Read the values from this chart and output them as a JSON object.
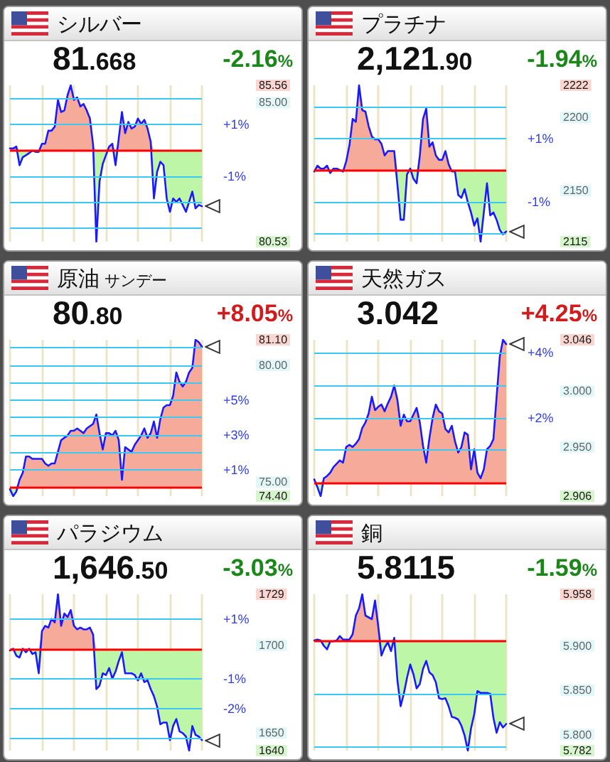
{
  "chart_data": [
    {
      "type": "line",
      "title": "シルバー",
      "subtitle": "81.668",
      "annotations": [
        "-2.16%"
      ],
      "grid": "x",
      "tick_labels": "y",
      "categories": [
        null,
        null,
        null,
        null,
        null,
        null,
        null,
        null,
        null,
        null,
        null,
        null,
        null,
        null,
        null,
        null,
        null,
        null,
        null,
        null,
        null,
        null,
        null,
        null,
        null,
        null,
        null,
        null,
        null,
        null,
        null,
        null,
        null,
        null,
        null,
        null,
        null,
        null,
        null,
        null,
        null,
        null,
        null,
        null,
        null,
        null,
        null,
        null,
        null,
        null,
        null,
        null,
        null,
        null,
        null,
        null,
        null,
        null,
        null,
        null,
        null
      ],
      "series": [
        {
          "color": "#1a1aff",
          "values": [
            83.53,
            83.53,
            83.59,
            82.99,
            83.25,
            83.31,
            83.38,
            83.46,
            83.42,
            83.42,
            83.68,
            83.68,
            84.1,
            84.1,
            84.23,
            85.09,
            84.7,
            84.75,
            85.24,
            85.56,
            85.09,
            85.17,
            84.88,
            84.96,
            84.75,
            84.49,
            83.63,
            80.53,
            82.46,
            83.03,
            83.31,
            83.59,
            83.68,
            82.99,
            83.85,
            84.7,
            84.02,
            84.38,
            84.17,
            84.23,
            84.49,
            84.32,
            84.45,
            84.17,
            83.74,
            81.92,
            82.78,
            83.1,
            82.99,
            81.92,
            81.49,
            81.92,
            81.81,
            81.92,
            81.71,
            81.49,
            81.81,
            82.14,
            81.6,
            81.71,
            81.67
          ],
          "lower": [
            83.47,
            83.47,
            83.47,
            82.99,
            83.25,
            83.31,
            83.38,
            83.46,
            83.42,
            83.42,
            83.47,
            83.47,
            83.47,
            83.47,
            83.47,
            83.47,
            83.47,
            83.47,
            83.47,
            83.47,
            83.47,
            83.47,
            83.47,
            83.47,
            83.47,
            83.47,
            83.47,
            80.53,
            82.46,
            83.03,
            83.31,
            83.47,
            83.47,
            82.99,
            83.47,
            83.47,
            83.47,
            83.47,
            83.47,
            83.47,
            83.47,
            83.47,
            83.47,
            83.47,
            83.47,
            81.92,
            82.78,
            83.1,
            82.99,
            81.92,
            81.49,
            81.92,
            81.81,
            81.92,
            81.71,
            81.49,
            81.81,
            82.14,
            81.6,
            81.71,
            81.67
          ],
          "upper": [
            83.53,
            83.53,
            83.59,
            83.47,
            83.47,
            83.47,
            83.47,
            83.47,
            83.47,
            83.47,
            83.68,
            83.68,
            84.1,
            84.1,
            84.23,
            85.09,
            84.7,
            84.75,
            85.24,
            85.56,
            85.09,
            85.17,
            84.88,
            84.96,
            84.75,
            84.49,
            83.63,
            83.47,
            83.47,
            83.47,
            83.47,
            83.59,
            83.68,
            83.47,
            83.85,
            84.7,
            84.02,
            84.38,
            84.17,
            84.23,
            84.49,
            84.32,
            84.45,
            84.17,
            83.74,
            83.47,
            83.47,
            83.47,
            83.47,
            83.47,
            83.47,
            83.47,
            83.47,
            83.47,
            83.47,
            83.47,
            83.47,
            83.47,
            83.47,
            83.47,
            83.47
          ]
        }
      ],
      "ylim": [
        80.53,
        85.56
      ],
      "yticks": [
        85.56,
        {
          "value": 85,
          "label": "85.00"
        },
        80.53
      ],
      "y2lim": [
        -3.52,
        2.5
      ],
      "y2ticks": [
        {
          "value": 1,
          "label": "+1%"
        },
        {
          "value": -1,
          "label": "-1%"
        }
      ],
      "ref_lines": [
        {
          "axis": "y2",
          "value": 0,
          "color": "#ff0000"
        },
        {
          "axis": "y2",
          "value": 2,
          "color": "#3cc8f5"
        },
        {
          "axis": "y2",
          "value": 1,
          "color": "#3cc8f5"
        },
        {
          "axis": "y2",
          "value": -1,
          "color": "#3cc8f5"
        },
        {
          "axis": "y2",
          "value": -2,
          "color": "#3cc8f5"
        },
        {
          "axis": "y2",
          "value": -3,
          "color": "#3cc8f5"
        }
      ]
    },
    {
      "type": "line",
      "title": "プラチナ",
      "subtitle": "2,121.90",
      "annotations": [
        "-1.94%"
      ],
      "grid": "x",
      "tick_labels": "y",
      "categories": [
        null,
        null,
        null,
        null,
        null,
        null,
        null,
        null,
        null,
        null,
        null,
        null,
        null,
        null,
        null,
        null,
        null,
        null,
        null,
        null,
        null,
        null,
        null,
        null,
        null,
        null,
        null,
        null,
        null,
        null,
        null,
        null,
        null,
        null,
        null,
        null,
        null,
        null,
        null,
        null,
        null,
        null,
        null,
        null,
        null,
        null,
        null,
        null,
        null,
        null,
        null,
        null,
        null,
        null,
        null,
        null,
        null,
        null,
        null,
        null,
        null
      ],
      "series": [
        {
          "color": "#1a1aff",
          "values": [
            2163,
            2167,
            2165,
            2165,
            2167,
            2162,
            2165,
            2165,
            2164,
            2163,
            2170,
            2181,
            2199,
            2197,
            2222,
            2205,
            2204,
            2194,
            2187,
            2185,
            2185,
            2182,
            2174,
            2177,
            2177,
            2177,
            2154,
            2130,
            2130,
            2161,
            2165,
            2158,
            2155,
            2174,
            2199,
            2206,
            2180,
            2183,
            2174,
            2171,
            2171,
            2177,
            2168,
            2163,
            2163,
            2147,
            2145,
            2151,
            2142,
            2135,
            2126,
            2131,
            2115,
            2135,
            2155,
            2133,
            2135,
            2130,
            2123,
            2120,
            2122
          ],
          "lower": [
            2163,
            2164,
            2164,
            2164,
            2164,
            2162,
            2164,
            2164,
            2164,
            2163,
            2164,
            2164,
            2164,
            2164,
            2164,
            2164,
            2164,
            2164,
            2164,
            2164,
            2164,
            2164,
            2164,
            2164,
            2164,
            2164,
            2154,
            2130,
            2130,
            2161,
            2164,
            2158,
            2155,
            2164,
            2164,
            2164,
            2164,
            2164,
            2164,
            2164,
            2164,
            2164,
            2164,
            2163,
            2163,
            2147,
            2145,
            2151,
            2142,
            2135,
            2126,
            2131,
            2115,
            2135,
            2155,
            2133,
            2135,
            2130,
            2123,
            2120,
            2122
          ],
          "upper": [
            2164,
            2167,
            2165,
            2165,
            2167,
            2164,
            2165,
            2165,
            2164,
            2164,
            2170,
            2181,
            2199,
            2197,
            2222,
            2205,
            2204,
            2194,
            2187,
            2185,
            2185,
            2182,
            2174,
            2177,
            2177,
            2177,
            2164,
            2164,
            2164,
            2164,
            2165,
            2164,
            2164,
            2174,
            2199,
            2206,
            2180,
            2183,
            2174,
            2171,
            2171,
            2177,
            2168,
            2164,
            2164,
            2164,
            2164,
            2164,
            2164,
            2164,
            2164,
            2164,
            2164,
            2164,
            2164,
            2164,
            2164,
            2164,
            2164,
            2164,
            2164
          ]
        }
      ],
      "ylim": [
        2115,
        2222
      ],
      "yticks": [
        2222,
        2200,
        2150,
        2115
      ],
      "y2lim": [
        -2.26,
        2.69
      ],
      "y2ticks": [
        {
          "value": 1,
          "label": "+1%"
        },
        {
          "value": -1,
          "label": "-1%"
        }
      ],
      "ref_lines": [
        {
          "axis": "y2",
          "value": 0,
          "color": "#ff0000"
        },
        {
          "axis": "y2",
          "value": 2,
          "color": "#3cc8f5"
        },
        {
          "axis": "y2",
          "value": 1,
          "color": "#3cc8f5"
        },
        {
          "axis": "y2",
          "value": -1,
          "color": "#3cc8f5"
        },
        {
          "axis": "y2",
          "value": -2,
          "color": "#3cc8f5"
        }
      ]
    },
    {
      "type": "line",
      "title": "原油 サンデー",
      "subtitle": "80.80",
      "annotations": [
        "+8.05%"
      ],
      "grid": "x",
      "tick_labels": "y",
      "categories": [
        null,
        null,
        null,
        null,
        null,
        null,
        null,
        null,
        null,
        null,
        null,
        null,
        null,
        null,
        null,
        null,
        null,
        null,
        null,
        null,
        null,
        null,
        null,
        null,
        null,
        null,
        null,
        null,
        null,
        null,
        null,
        null,
        null,
        null,
        null,
        null,
        null,
        null,
        null,
        null,
        null,
        null,
        null,
        null,
        null,
        null,
        null,
        null,
        null,
        null,
        null,
        null,
        null,
        null,
        null,
        null,
        null,
        null,
        null,
        null,
        null
      ],
      "series": [
        {
          "color": "#1a1aff",
          "values": [
            74.7,
            74.4,
            74.6,
            75.1,
            75.4,
            76.1,
            76.1,
            76.0,
            76.0,
            76.0,
            76.0,
            75.8,
            75.7,
            75.8,
            75.8,
            76.3,
            76.8,
            76.9,
            77.0,
            77.2,
            77.2,
            77.3,
            77.2,
            77.1,
            77.3,
            77.4,
            77.5,
            77.9,
            77.1,
            76.4,
            77.1,
            77.1,
            77.0,
            77.2,
            76.8,
            75.1,
            76.5,
            76.4,
            76.3,
            76.6,
            76.8,
            77.0,
            77.3,
            76.9,
            77.1,
            77.6,
            76.9,
            77.7,
            78.2,
            78.3,
            78.3,
            78.7,
            79.7,
            79.3,
            79.1,
            79.3,
            79.7,
            79.9,
            81.1,
            81.0,
            80.8
          ],
          "lower": [
            74.7,
            74.4,
            74.6,
            74.8,
            74.8,
            74.8,
            74.8,
            74.8,
            74.8,
            74.8,
            74.8,
            74.8,
            74.8,
            74.8,
            74.8,
            74.8,
            74.8,
            74.8,
            74.8,
            74.8,
            74.8,
            74.8,
            74.8,
            74.8,
            74.8,
            74.8,
            74.8,
            74.8,
            74.8,
            74.8,
            74.8,
            74.8,
            74.8,
            74.8,
            74.8,
            74.8,
            74.8,
            74.8,
            74.8,
            74.8,
            74.8,
            74.8,
            74.8,
            74.8,
            74.8,
            74.8,
            74.8,
            74.8,
            74.8,
            74.8,
            74.8,
            74.8,
            74.8,
            74.8,
            74.8,
            74.8,
            74.8,
            74.8,
            74.8,
            74.8,
            74.8
          ],
          "upper": [
            74.8,
            74.8,
            74.8,
            75.1,
            75.4,
            76.1,
            76.1,
            76.0,
            76.0,
            76.0,
            76.0,
            75.8,
            75.7,
            75.8,
            75.8,
            76.3,
            76.8,
            76.9,
            77.0,
            77.2,
            77.2,
            77.3,
            77.2,
            77.1,
            77.3,
            77.4,
            77.5,
            77.9,
            77.1,
            76.4,
            77.1,
            77.1,
            77.0,
            77.2,
            76.8,
            75.1,
            76.5,
            76.4,
            76.3,
            76.6,
            76.8,
            77.0,
            77.3,
            76.9,
            77.1,
            77.6,
            76.9,
            77.7,
            78.2,
            78.3,
            78.3,
            78.7,
            79.7,
            79.3,
            79.1,
            79.3,
            79.7,
            79.9,
            81.1,
            81.0,
            80.8
          ]
        }
      ],
      "ylim": [
        74.4,
        81.1
      ],
      "yticks": [
        {
          "value": 81.1,
          "label": "81.10"
        },
        {
          "value": 80,
          "label": "80.00"
        },
        {
          "value": 75,
          "label": "75.00"
        },
        {
          "value": 74.4,
          "label": "74.40"
        }
      ],
      "y2lim": [
        -0.51,
        8.45
      ],
      "y2ticks": [
        {
          "value": 5,
          "label": "+5%"
        },
        {
          "value": 3,
          "label": "+3%"
        },
        {
          "value": 1,
          "label": "+1%"
        }
      ],
      "ref_lines": [
        {
          "axis": "y2",
          "value": 0,
          "color": "#ff0000"
        },
        {
          "axis": "y2",
          "value": 1,
          "color": "#3cc8f5"
        },
        {
          "axis": "y2",
          "value": 2,
          "color": "#3cc8f5"
        },
        {
          "axis": "y2",
          "value": 3,
          "color": "#3cc8f5"
        },
        {
          "axis": "y2",
          "value": 4,
          "color": "#3cc8f5"
        },
        {
          "axis": "y2",
          "value": 5,
          "color": "#3cc8f5"
        },
        {
          "axis": "y2",
          "value": 6,
          "color": "#3cc8f5"
        },
        {
          "axis": "y2",
          "value": 7,
          "color": "#3cc8f5"
        },
        {
          "axis": "y2",
          "value": 8,
          "color": "#3cc8f5"
        }
      ]
    },
    {
      "type": "line",
      "title": "天然ガス",
      "subtitle": "3.042",
      "annotations": [
        "+4.25%"
      ],
      "grid": "x",
      "tick_labels": "y",
      "categories": [
        null,
        null,
        null,
        null,
        null,
        null,
        null,
        null,
        null,
        null,
        null,
        null,
        null,
        null,
        null,
        null,
        null,
        null,
        null,
        null,
        null,
        null,
        null,
        null,
        null,
        null,
        null,
        null,
        null,
        null,
        null,
        null,
        null,
        null,
        null,
        null,
        null,
        null,
        null,
        null,
        null,
        null,
        null,
        null,
        null,
        null,
        null,
        null,
        null,
        null,
        null,
        null,
        null,
        null,
        null,
        null,
        null,
        null,
        null,
        null,
        null
      ],
      "series": [
        {
          "color": "#1a1aff",
          "values": [
            2.921,
            2.914,
            2.906,
            2.922,
            2.924,
            2.927,
            2.932,
            2.935,
            2.938,
            2.936,
            2.95,
            2.952,
            2.95,
            2.953,
            2.957,
            2.967,
            2.972,
            2.98,
            2.995,
            2.983,
            2.986,
            2.988,
            2.982,
            2.989,
            2.995,
            3.005,
            2.992,
            2.969,
            2.979,
            2.973,
            2.973,
            2.979,
            2.985,
            2.972,
            2.951,
            2.936,
            2.958,
            2.976,
            2.988,
            2.982,
            2.98,
            2.966,
            2.963,
            2.969,
            2.955,
            2.945,
            2.95,
            2.963,
            2.961,
            2.93,
            2.948,
            2.927,
            2.922,
            2.93,
            2.948,
            2.951,
            2.957,
            2.995,
            3.031,
            3.046,
            3.042
          ],
          "lower": [
            2.918,
            2.914,
            2.906,
            2.918,
            2.918,
            2.918,
            2.918,
            2.918,
            2.918,
            2.918,
            2.918,
            2.918,
            2.918,
            2.918,
            2.918,
            2.918,
            2.918,
            2.918,
            2.918,
            2.918,
            2.918,
            2.918,
            2.918,
            2.918,
            2.918,
            2.918,
            2.918,
            2.918,
            2.918,
            2.918,
            2.918,
            2.918,
            2.918,
            2.918,
            2.918,
            2.918,
            2.918,
            2.918,
            2.918,
            2.918,
            2.918,
            2.918,
            2.918,
            2.918,
            2.918,
            2.918,
            2.918,
            2.918,
            2.918,
            2.918,
            2.918,
            2.918,
            2.918,
            2.918,
            2.918,
            2.918,
            2.918,
            2.918,
            2.918,
            2.918,
            2.918
          ],
          "upper": [
            2.921,
            2.918,
            2.918,
            2.922,
            2.924,
            2.927,
            2.932,
            2.935,
            2.938,
            2.936,
            2.95,
            2.952,
            2.95,
            2.953,
            2.957,
            2.967,
            2.972,
            2.98,
            2.995,
            2.983,
            2.986,
            2.988,
            2.982,
            2.989,
            2.995,
            3.005,
            2.992,
            2.969,
            2.979,
            2.973,
            2.973,
            2.979,
            2.985,
            2.972,
            2.951,
            2.936,
            2.958,
            2.976,
            2.988,
            2.982,
            2.98,
            2.966,
            2.963,
            2.969,
            2.955,
            2.945,
            2.95,
            2.963,
            2.961,
            2.93,
            2.948,
            2.927,
            2.922,
            2.93,
            2.948,
            2.951,
            2.957,
            2.995,
            3.031,
            3.046,
            3.042
          ]
        }
      ],
      "ylim": [
        2.906,
        3.046
      ],
      "yticks": [
        3.046,
        {
          "value": 3,
          "label": "3.000"
        },
        {
          "value": 2.95,
          "label": "2.950"
        },
        2.906
      ],
      "y2lim": [
        -0.41,
        4.39
      ],
      "y2ticks": [
        {
          "value": 4,
          "label": "+4%"
        },
        {
          "value": 2,
          "label": "+2%"
        }
      ],
      "ref_lines": [
        {
          "axis": "y2",
          "value": 0,
          "color": "#ff0000"
        },
        {
          "axis": "y2",
          "value": 1,
          "color": "#3cc8f5"
        },
        {
          "axis": "y2",
          "value": 2,
          "color": "#3cc8f5"
        },
        {
          "axis": "y2",
          "value": 3,
          "color": "#3cc8f5"
        },
        {
          "axis": "y2",
          "value": 4,
          "color": "#3cc8f5"
        }
      ]
    },
    {
      "type": "line",
      "title": "パラジウム",
      "subtitle": "1,646.50",
      "annotations": [
        "-3.03%"
      ],
      "grid": "x",
      "tick_labels": "y",
      "categories": [
        null,
        null,
        null,
        null,
        null,
        null,
        null,
        null,
        null,
        null,
        null,
        null,
        null,
        null,
        null,
        null,
        null,
        null,
        null,
        null,
        null,
        null,
        null,
        null,
        null,
        null,
        null,
        null,
        null,
        null,
        null,
        null,
        null,
        null,
        null,
        null,
        null,
        null,
        null,
        null,
        null,
        null,
        null,
        null,
        null,
        null,
        null,
        null,
        null,
        null,
        null,
        null,
        null,
        null,
        null,
        null,
        null,
        null,
        null,
        null,
        null
      ],
      "series": [
        {
          "color": "#1a1aff",
          "values": [
            1697,
            1698,
            1694,
            1693,
            1698,
            1696,
            1698,
            1695,
            1696,
            1684,
            1708,
            1711,
            1710,
            1715,
            1713,
            1729,
            1711,
            1718,
            1716,
            1720,
            1711,
            1709,
            1710,
            1709,
            1709,
            1710,
            1706,
            1675,
            1677,
            1684,
            1683,
            1687,
            1681,
            1685,
            1691,
            1696,
            1684,
            1684,
            1684,
            1683,
            1680,
            1684,
            1679,
            1680,
            1675,
            1671,
            1665,
            1655,
            1656,
            1656,
            1646,
            1654,
            1658,
            1651,
            1650,
            1648,
            1640,
            1654,
            1649,
            1648,
            1646
          ],
          "lower": [
            1697,
            1698,
            1694,
            1693,
            1698,
            1696,
            1698,
            1695,
            1696,
            1684,
            1698,
            1698,
            1698,
            1698,
            1698,
            1698,
            1698,
            1698,
            1698,
            1698,
            1698,
            1698,
            1698,
            1698,
            1698,
            1698,
            1698,
            1675,
            1677,
            1684,
            1683,
            1687,
            1681,
            1685,
            1691,
            1696,
            1684,
            1684,
            1684,
            1683,
            1680,
            1684,
            1679,
            1680,
            1675,
            1671,
            1665,
            1655,
            1656,
            1656,
            1646,
            1654,
            1658,
            1651,
            1650,
            1648,
            1640,
            1654,
            1649,
            1648,
            1646
          ],
          "upper": [
            1698,
            1698,
            1698,
            1698,
            1698,
            1698,
            1698,
            1698,
            1698,
            1698,
            1708,
            1711,
            1710,
            1715,
            1713,
            1729,
            1711,
            1718,
            1716,
            1720,
            1711,
            1709,
            1710,
            1709,
            1709,
            1710,
            1706,
            1698,
            1698,
            1698,
            1698,
            1698,
            1698,
            1698,
            1698,
            1698,
            1698,
            1698,
            1698,
            1698,
            1698,
            1698,
            1698,
            1698,
            1698,
            1698,
            1698,
            1698,
            1698,
            1698,
            1698,
            1698,
            1698,
            1698,
            1698,
            1698,
            1698,
            1698,
            1698,
            1698,
            1698
          ]
        }
      ],
      "ylim": [
        1640,
        1729
      ],
      "yticks": [
        1729,
        1700,
        1650,
        1640
      ],
      "y2lim": [
        -3.41,
        1.83
      ],
      "y2ticks": [
        {
          "value": 1,
          "label": "+1%"
        },
        {
          "value": -1,
          "label": "-1%"
        },
        {
          "value": -2,
          "label": "-2%"
        }
      ],
      "ref_lines": [
        {
          "axis": "y2",
          "value": 0,
          "color": "#ff0000"
        },
        {
          "axis": "y2",
          "value": 1,
          "color": "#3cc8f5"
        },
        {
          "axis": "y2",
          "value": -1,
          "color": "#3cc8f5"
        },
        {
          "axis": "y2",
          "value": -2,
          "color": "#3cc8f5"
        },
        {
          "axis": "y2",
          "value": -3,
          "color": "#3cc8f5"
        }
      ]
    },
    {
      "type": "line",
      "title": "銅",
      "subtitle": "5.8115",
      "annotations": [
        "-1.59%"
      ],
      "grid": "x",
      "tick_labels": "y",
      "categories": [
        null,
        null,
        null,
        null,
        null,
        null,
        null,
        null,
        null,
        null,
        null,
        null,
        null,
        null,
        null,
        null,
        null,
        null,
        null,
        null,
        null,
        null,
        null,
        null,
        null,
        null,
        null,
        null,
        null,
        null,
        null,
        null,
        null,
        null,
        null,
        null,
        null,
        null,
        null,
        null,
        null,
        null,
        null,
        null,
        null,
        null,
        null,
        null,
        null,
        null,
        null,
        null,
        null,
        null,
        null,
        null,
        null,
        null,
        null,
        null,
        null
      ],
      "series": [
        {
          "color": "#1a1aff",
          "values": [
            5.906,
            5.907,
            5.906,
            5.9,
            5.896,
            5.905,
            5.905,
            5.906,
            5.911,
            5.907,
            5.907,
            5.907,
            5.913,
            5.934,
            5.942,
            5.958,
            5.934,
            5.932,
            5.93,
            5.951,
            5.922,
            5.889,
            5.898,
            5.904,
            5.894,
            5.909,
            5.861,
            5.832,
            5.846,
            5.864,
            5.879,
            5.868,
            5.852,
            5.857,
            5.874,
            5.883,
            5.87,
            5.867,
            5.859,
            5.841,
            5.84,
            5.841,
            5.832,
            5.82,
            5.819,
            5.817,
            5.81,
            5.799,
            5.782,
            5.807,
            5.823,
            5.849,
            5.847,
            5.847,
            5.847,
            5.846,
            5.819,
            5.802,
            5.814,
            5.808,
            5.812
          ],
          "lower": [
            5.905,
            5.905,
            5.905,
            5.9,
            5.896,
            5.905,
            5.905,
            5.905,
            5.905,
            5.905,
            5.905,
            5.905,
            5.905,
            5.905,
            5.905,
            5.905,
            5.905,
            5.905,
            5.905,
            5.905,
            5.905,
            5.889,
            5.898,
            5.904,
            5.894,
            5.905,
            5.861,
            5.832,
            5.846,
            5.864,
            5.879,
            5.868,
            5.852,
            5.857,
            5.874,
            5.883,
            5.87,
            5.867,
            5.859,
            5.841,
            5.84,
            5.841,
            5.832,
            5.82,
            5.819,
            5.817,
            5.81,
            5.799,
            5.782,
            5.807,
            5.823,
            5.849,
            5.847,
            5.847,
            5.847,
            5.846,
            5.819,
            5.802,
            5.814,
            5.808,
            5.812
          ],
          "upper": [
            5.906,
            5.907,
            5.906,
            5.905,
            5.905,
            5.905,
            5.905,
            5.906,
            5.911,
            5.907,
            5.907,
            5.907,
            5.913,
            5.934,
            5.942,
            5.958,
            5.934,
            5.932,
            5.93,
            5.951,
            5.922,
            5.905,
            5.905,
            5.905,
            5.905,
            5.909,
            5.905,
            5.905,
            5.905,
            5.905,
            5.905,
            5.905,
            5.905,
            5.905,
            5.905,
            5.905,
            5.905,
            5.905,
            5.905,
            5.905,
            5.905,
            5.905,
            5.905,
            5.905,
            5.905,
            5.905,
            5.905,
            5.905,
            5.905,
            5.905,
            5.905,
            5.905,
            5.905,
            5.905,
            5.905,
            5.905,
            5.905,
            5.905,
            5.905,
            5.905,
            5.905
          ]
        }
      ],
      "ylim": [
        5.782,
        5.958
      ],
      "yticks": [
        5.958,
        {
          "value": 5.9,
          "label": "5.900"
        },
        {
          "value": 5.85,
          "label": "5.850"
        },
        {
          "value": 5.8,
          "label": "5.800"
        },
        5.782
      ],
      "ref_lines": [
        {
          "axis": "y",
          "value": 5.905,
          "color": "#ff0000"
        },
        {
          "axis": "y",
          "value": 5.846,
          "color": "#3cc8f5"
        },
        {
          "axis": "y",
          "value": 5.787,
          "color": "#3cc8f5"
        }
      ]
    }
  ]
}
